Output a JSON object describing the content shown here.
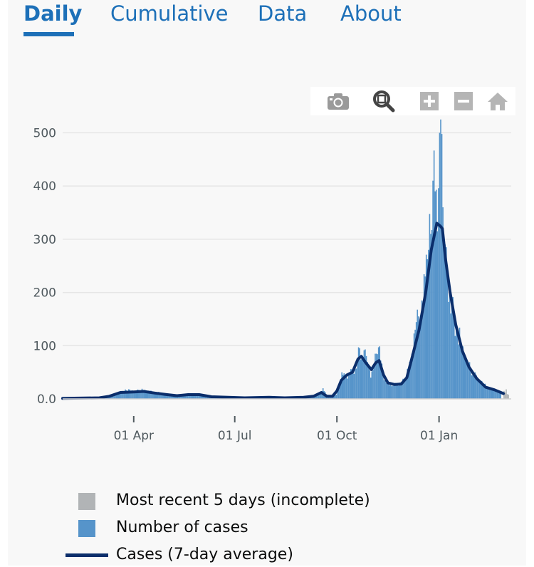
{
  "tabs": [
    {
      "label": "Daily",
      "active": true
    },
    {
      "label": "Cumulative",
      "active": false
    },
    {
      "label": "Data",
      "active": false
    },
    {
      "label": "About",
      "active": false
    }
  ],
  "toolbar": {
    "icons": [
      "camera-icon",
      "zoom-icon",
      "zoom-in-icon",
      "zoom-out-icon",
      "home-icon"
    ]
  },
  "colors": {
    "accent": "#1d70b8",
    "bars": "#5694ca",
    "incomplete": "#b1b4b6",
    "average": "#0b2e6b"
  },
  "chart_data": {
    "type": "bar",
    "x_range": [
      "2020-01-28",
      "2021-03-07"
    ],
    "ylim": [
      0,
      530
    ],
    "yticks": [
      0,
      100,
      200,
      300,
      400,
      500
    ],
    "ytick_labels": [
      "0.0",
      "100",
      "200",
      "300",
      "400",
      "500"
    ],
    "xticks": [
      {
        "date": "2020-04-01",
        "label": "01 Apr"
      },
      {
        "date": "2020-07-01",
        "label": "01 Jul"
      },
      {
        "date": "2020-10-01",
        "label": "01 Oct"
      },
      {
        "date": "2021-01-01",
        "label": "01 Jan"
      }
    ],
    "grid": true,
    "series": [
      {
        "name": "Number of cases",
        "kind": "bar",
        "points": [
          [
            "2020-02-25",
            0
          ],
          [
            "2020-03-10",
            3
          ],
          [
            "2020-03-20",
            12
          ],
          [
            "2020-03-25",
            16
          ],
          [
            "2020-04-01",
            14
          ],
          [
            "2020-04-10",
            17
          ],
          [
            "2020-04-20",
            13
          ],
          [
            "2020-04-30",
            9
          ],
          [
            "2020-05-10",
            6
          ],
          [
            "2020-05-20",
            8
          ],
          [
            "2020-05-30",
            9
          ],
          [
            "2020-06-10",
            5
          ],
          [
            "2020-06-20",
            3
          ],
          [
            "2020-07-01",
            2
          ],
          [
            "2020-07-15",
            2
          ],
          [
            "2020-08-01",
            3
          ],
          [
            "2020-08-15",
            2
          ],
          [
            "2020-09-01",
            3
          ],
          [
            "2020-09-10",
            5
          ],
          [
            "2020-09-15",
            10
          ],
          [
            "2020-09-18",
            20
          ],
          [
            "2020-09-22",
            6
          ],
          [
            "2020-09-26",
            4
          ],
          [
            "2020-09-30",
            8
          ],
          [
            "2020-10-03",
            22
          ],
          [
            "2020-10-05",
            50
          ],
          [
            "2020-10-08",
            45
          ],
          [
            "2020-10-10",
            38
          ],
          [
            "2020-10-13",
            56
          ],
          [
            "2020-10-16",
            47
          ],
          [
            "2020-10-19",
            70
          ],
          [
            "2020-10-21",
            95
          ],
          [
            "2020-10-23",
            80
          ],
          [
            "2020-10-26",
            93
          ],
          [
            "2020-10-29",
            60
          ],
          [
            "2020-10-31",
            40
          ],
          [
            "2020-11-03",
            62
          ],
          [
            "2020-11-05",
            85
          ],
          [
            "2020-11-07",
            97
          ],
          [
            "2020-11-09",
            72
          ],
          [
            "2020-11-12",
            35
          ],
          [
            "2020-11-16",
            30
          ],
          [
            "2020-11-20",
            25
          ],
          [
            "2020-11-24",
            26
          ],
          [
            "2020-11-28",
            30
          ],
          [
            "2020-12-01",
            38
          ],
          [
            "2020-12-04",
            55
          ],
          [
            "2020-12-07",
            85
          ],
          [
            "2020-12-10",
            130
          ],
          [
            "2020-12-13",
            155
          ],
          [
            "2020-12-16",
            185
          ],
          [
            "2020-12-19",
            230
          ],
          [
            "2020-12-22",
            280
          ],
          [
            "2020-12-24",
            310
          ],
          [
            "2020-12-26",
            410
          ],
          [
            "2020-12-28",
            390
          ],
          [
            "2020-12-30",
            315
          ],
          [
            "2021-01-01",
            500
          ],
          [
            "2021-01-02",
            525
          ],
          [
            "2021-01-04",
            360
          ],
          [
            "2021-01-06",
            290
          ],
          [
            "2021-01-08",
            240
          ],
          [
            "2021-01-10",
            200
          ],
          [
            "2021-01-12",
            185
          ],
          [
            "2021-01-14",
            150
          ],
          [
            "2021-01-17",
            130
          ],
          [
            "2021-01-20",
            110
          ],
          [
            "2021-01-23",
            85
          ],
          [
            "2021-01-26",
            70
          ],
          [
            "2021-01-29",
            55
          ],
          [
            "2021-02-01",
            45
          ],
          [
            "2021-02-05",
            35
          ],
          [
            "2021-02-09",
            30
          ],
          [
            "2021-02-13",
            22
          ],
          [
            "2021-02-17",
            18
          ],
          [
            "2021-02-21",
            14
          ],
          [
            "2021-02-25",
            10
          ]
        ]
      },
      {
        "name": "Most recent 5 days (incomplete)",
        "kind": "bar",
        "points": [
          [
            "2021-02-28",
            15
          ],
          [
            "2021-03-01",
            12
          ],
          [
            "2021-03-02",
            18
          ],
          [
            "2021-03-03",
            9
          ],
          [
            "2021-03-04",
            8
          ]
        ]
      },
      {
        "name": "Cases (7-day average)",
        "kind": "line",
        "points": [
          [
            "2020-01-28",
            1
          ],
          [
            "2020-03-01",
            2
          ],
          [
            "2020-03-10",
            5
          ],
          [
            "2020-03-20",
            12
          ],
          [
            "2020-04-01",
            13
          ],
          [
            "2020-04-10",
            14
          ],
          [
            "2020-04-20",
            11
          ],
          [
            "2020-05-01",
            8
          ],
          [
            "2020-05-10",
            6
          ],
          [
            "2020-05-20",
            8
          ],
          [
            "2020-05-30",
            8
          ],
          [
            "2020-06-10",
            4
          ],
          [
            "2020-06-25",
            3
          ],
          [
            "2020-07-10",
            2
          ],
          [
            "2020-08-01",
            3
          ],
          [
            "2020-08-15",
            2
          ],
          [
            "2020-09-01",
            3
          ],
          [
            "2020-09-10",
            5
          ],
          [
            "2020-09-17",
            12
          ],
          [
            "2020-09-22",
            5
          ],
          [
            "2020-09-27",
            5
          ],
          [
            "2020-10-01",
            15
          ],
          [
            "2020-10-05",
            35
          ],
          [
            "2020-10-10",
            45
          ],
          [
            "2020-10-15",
            50
          ],
          [
            "2020-10-20",
            75
          ],
          [
            "2020-10-23",
            80
          ],
          [
            "2020-10-27",
            68
          ],
          [
            "2020-11-01",
            55
          ],
          [
            "2020-11-05",
            68
          ],
          [
            "2020-11-08",
            72
          ],
          [
            "2020-11-12",
            45
          ],
          [
            "2020-11-16",
            30
          ],
          [
            "2020-11-22",
            27
          ],
          [
            "2020-11-28",
            28
          ],
          [
            "2020-12-03",
            40
          ],
          [
            "2020-12-08",
            80
          ],
          [
            "2020-12-14",
            130
          ],
          [
            "2020-12-20",
            200
          ],
          [
            "2020-12-25",
            280
          ],
          [
            "2020-12-30",
            330
          ],
          [
            "2021-01-02",
            325
          ],
          [
            "2021-01-04",
            320
          ],
          [
            "2021-01-07",
            260
          ],
          [
            "2021-01-11",
            200
          ],
          [
            "2021-01-16",
            140
          ],
          [
            "2021-01-22",
            90
          ],
          [
            "2021-01-28",
            60
          ],
          [
            "2021-02-04",
            38
          ],
          [
            "2021-02-12",
            22
          ],
          [
            "2021-02-20",
            17
          ],
          [
            "2021-02-28",
            10
          ]
        ]
      }
    ]
  },
  "legend": [
    {
      "label": "Most recent 5 days (incomplete)",
      "type": "box",
      "color": "#b1b4b6"
    },
    {
      "label": "Number of cases",
      "type": "box",
      "color": "#5694ca"
    },
    {
      "label": "Cases (7-day average)",
      "type": "line",
      "color": "#0b2e6b"
    }
  ]
}
